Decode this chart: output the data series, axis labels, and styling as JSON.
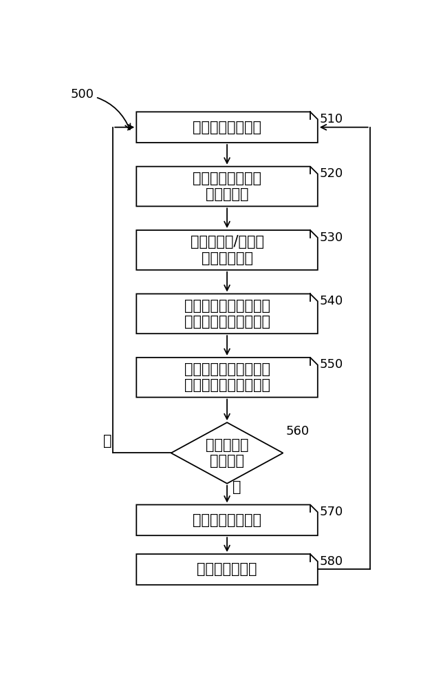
{
  "bg_color": "#ffffff",
  "line_color": "#000000",
  "text_color": "#000000",
  "box_edge_color": "#000000",
  "label_500": "500",
  "label_510": "510",
  "label_520": "520",
  "label_530": "530",
  "label_540": "540",
  "label_550": "550",
  "label_560": "560",
  "label_570": "570",
  "label_580": "580",
  "box1_text": "对于每个输入样本",
  "box2_text": "将输入修改成期望\n的显示格式",
  "box3_text": "使用波形和/或时基\n创建像素地址",
  "box4_text": "读取像素亮度的目前值\n并且将其用于确定范围",
  "box5_text": "基于针对该范围授给的\n增量百分比递增像素值",
  "diamond_text": "到更新显示\n的时间？",
  "box6_text": "将数据示出为波形",
  "box7_text": "清除累积存储器",
  "no_label": "否",
  "yes_label": "是",
  "font_size": 15,
  "label_font_size": 13,
  "small_font_size": 13
}
